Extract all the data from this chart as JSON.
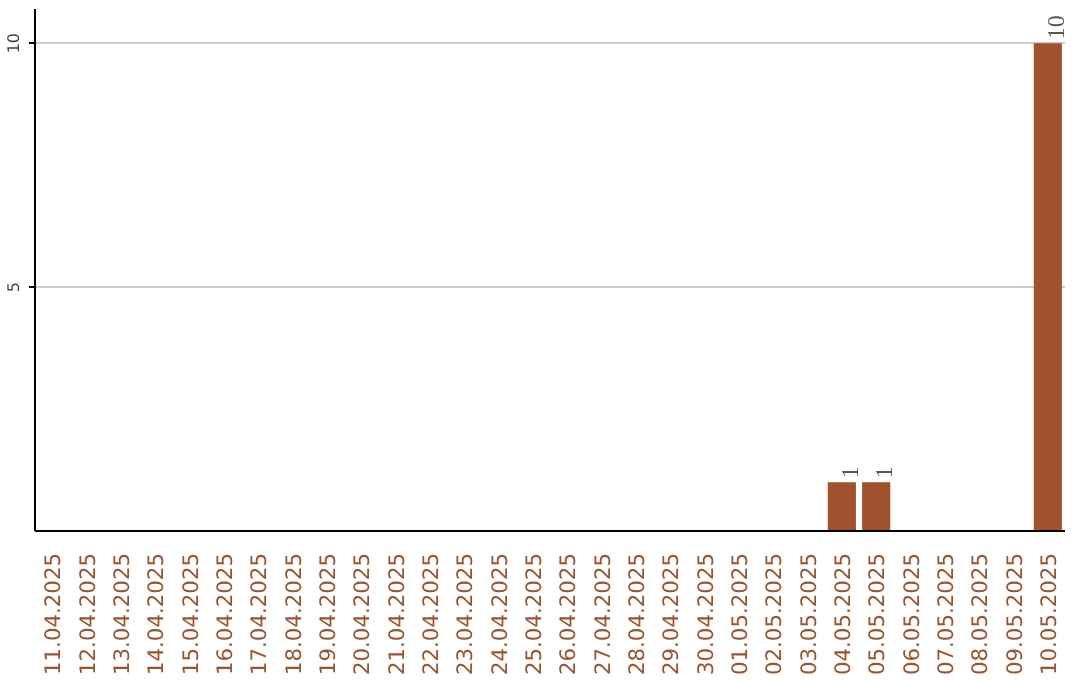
{
  "chart_data": {
    "type": "bar",
    "categories": [
      "11.04.2025",
      "12.04.2025",
      "13.04.2025",
      "14.04.2025",
      "15.04.2025",
      "16.04.2025",
      "17.04.2025",
      "18.04.2025",
      "19.04.2025",
      "20.04.2025",
      "21.04.2025",
      "22.04.2025",
      "23.04.2025",
      "24.04.2025",
      "25.04.2025",
      "26.04.2025",
      "27.04.2025",
      "28.04.2025",
      "29.04.2025",
      "30.04.2025",
      "01.05.2025",
      "02.05.2025",
      "03.05.2025",
      "04.05.2025",
      "05.05.2025",
      "06.05.2025",
      "07.05.2025",
      "08.05.2025",
      "09.05.2025",
      "10.05.2025"
    ],
    "values": [
      0,
      0,
      0,
      0,
      0,
      0,
      0,
      0,
      0,
      0,
      0,
      0,
      0,
      0,
      0,
      0,
      0,
      0,
      0,
      0,
      0,
      0,
      0,
      1,
      1,
      0,
      0,
      0,
      0,
      10
    ],
    "value_labels": [
      null,
      null,
      null,
      null,
      null,
      null,
      null,
      null,
      null,
      null,
      null,
      null,
      null,
      null,
      null,
      null,
      null,
      null,
      null,
      null,
      null,
      null,
      null,
      "1",
      "1",
      null,
      null,
      null,
      null,
      "10"
    ],
    "color": "#a0522d",
    "ylim": [
      0,
      10.7
    ],
    "yticks": [
      5,
      10
    ],
    "grid": "y"
  }
}
